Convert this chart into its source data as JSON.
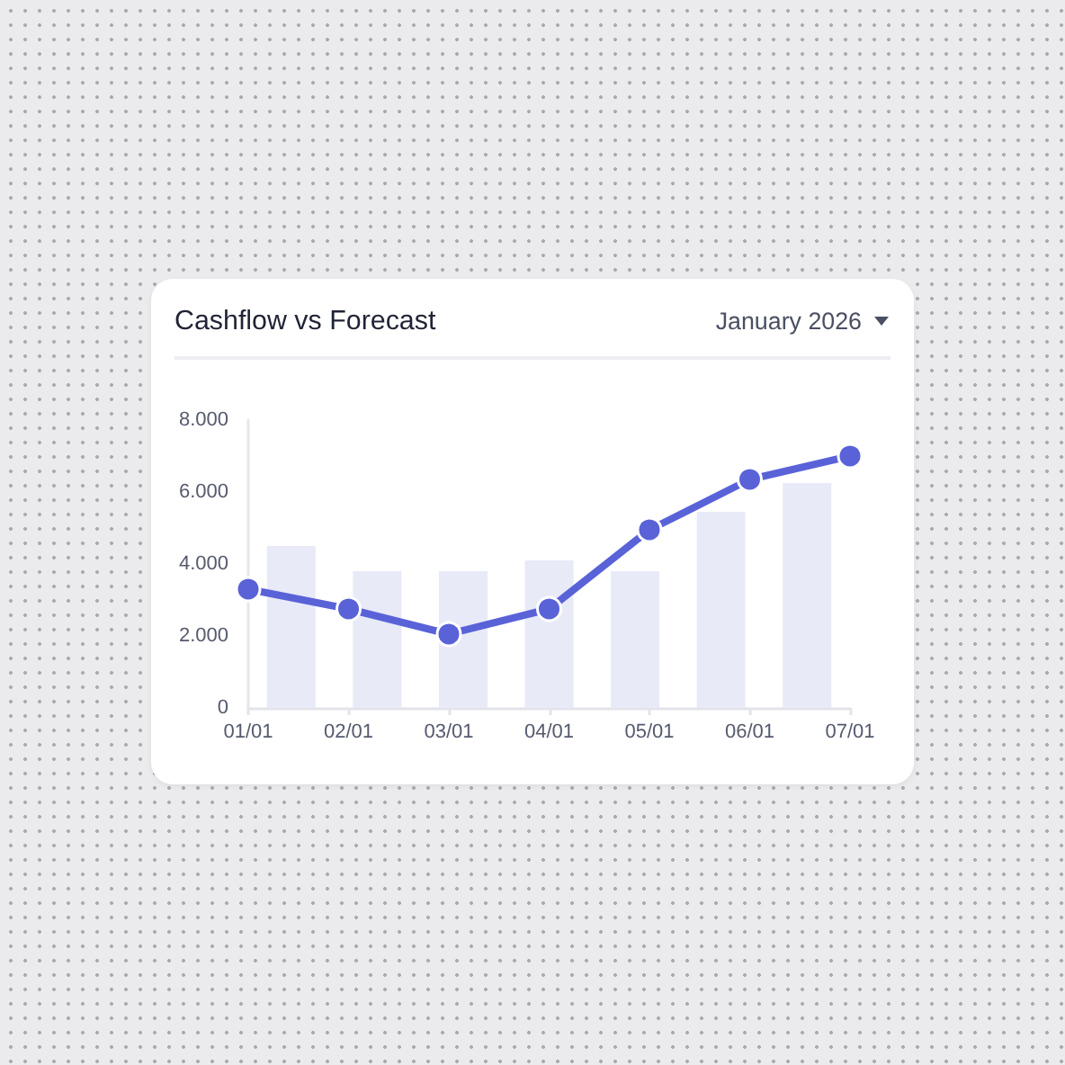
{
  "chart_data": {
    "type": "bar",
    "title": "Cashflow vs Forecast",
    "annotations": [
      "January 2026"
    ],
    "categories": [
      "01/01",
      "02/01",
      "03/01",
      "04/01",
      "05/01",
      "06/01",
      "07/01"
    ],
    "series": [
      {
        "color": "#e8eaf8",
        "values": [
          4500,
          3800,
          3800,
          4100,
          3800,
          5450,
          6250
        ]
      },
      {
        "type": "line",
        "color": "#5a62d8",
        "values": [
          3300,
          2750,
          2050,
          2750,
          4950,
          6350,
          7000
        ]
      }
    ],
    "ylim": [
      0,
      8000
    ],
    "yticks": [
      {
        "value": 0,
        "label": "0"
      },
      {
        "value": 2000,
        "label": "2.000"
      },
      {
        "value": 4000,
        "label": "4.000"
      },
      {
        "value": 6000,
        "label": "6.000"
      },
      {
        "value": 8000,
        "label": "8.000"
      }
    ],
    "grid": false,
    "marker": "circle",
    "line_style": "solid"
  }
}
